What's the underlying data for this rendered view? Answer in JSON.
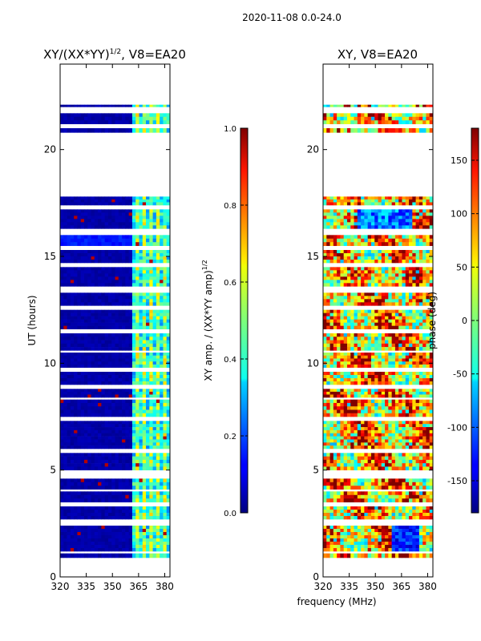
{
  "suptitle": "2020-11-08 0.0-24.0",
  "chart_data": [
    {
      "type": "heatmap",
      "title_main": "XY/(XX*YY)",
      "title_exp": "1/2",
      "title_tail": ", V8=EA20",
      "ylabel": "UT (hours)",
      "xlim": [
        320,
        383
      ],
      "ylim": [
        0,
        24
      ],
      "xticks": [
        "320",
        "335",
        "350",
        "365",
        "380"
      ],
      "yticks": [
        "0",
        "5",
        "10",
        "15",
        "20"
      ],
      "colorbar": {
        "label_main": "XY amp. / (XX*YY amp)",
        "label_exp": "1/2",
        "range": [
          0.0,
          1.0
        ],
        "ticks": [
          "0.0",
          "0.2",
          "0.4",
          "0.6",
          "0.8",
          "1.0"
        ]
      },
      "data_blocks_ut": [
        [
          0.9,
          1.1
        ],
        [
          1.2,
          2.4
        ],
        [
          2.7,
          3.3
        ],
        [
          3.5,
          4.0
        ],
        [
          4.1,
          4.6
        ],
        [
          5.0,
          5.8
        ],
        [
          6.0,
          7.3
        ],
        [
          7.5,
          8.3
        ],
        [
          8.4,
          8.8
        ],
        [
          9.0,
          9.6
        ],
        [
          9.8,
          10.5
        ],
        [
          10.6,
          11.4
        ],
        [
          11.6,
          12.5
        ],
        [
          12.7,
          13.3
        ],
        [
          13.6,
          14.5
        ],
        [
          14.7,
          15.3
        ],
        [
          15.5,
          16.0
        ],
        [
          16.3,
          17.2
        ],
        [
          17.4,
          17.8
        ],
        [
          20.8,
          21.0
        ],
        [
          21.2,
          21.7
        ],
        [
          22.0,
          22.1
        ]
      ],
      "hot_channels_mhz": [
        [
          363,
          365
        ],
        [
          368,
          370
        ],
        [
          371,
          373
        ],
        [
          375,
          377
        ],
        [
          379,
          381
        ]
      ]
    },
    {
      "type": "heatmap",
      "title": "XY, V8=EA20",
      "xlabel": "frequency (MHz)",
      "xlim": [
        320,
        383
      ],
      "ylim": [
        0,
        24
      ],
      "xticks": [
        "320",
        "335",
        "350",
        "365",
        "380"
      ],
      "yticks": [
        "0",
        "5",
        "10",
        "15",
        "20"
      ],
      "colorbar": {
        "label": "phase (deg)",
        "range": [
          -180,
          180
        ],
        "ticks": [
          "-150",
          "-100",
          "-50",
          "0",
          "50",
          "100",
          "150"
        ]
      },
      "data_blocks_ut": [
        [
          0.9,
          1.1
        ],
        [
          1.2,
          2.4
        ],
        [
          2.7,
          3.3
        ],
        [
          3.5,
          4.0
        ],
        [
          4.1,
          4.6
        ],
        [
          5.0,
          5.8
        ],
        [
          6.0,
          7.3
        ],
        [
          7.5,
          8.3
        ],
        [
          8.4,
          8.8
        ],
        [
          9.0,
          9.6
        ],
        [
          9.8,
          10.5
        ],
        [
          10.6,
          11.4
        ],
        [
          11.6,
          12.5
        ],
        [
          12.7,
          13.3
        ],
        [
          13.6,
          14.5
        ],
        [
          14.7,
          15.3
        ],
        [
          15.5,
          16.0
        ],
        [
          16.3,
          17.2
        ],
        [
          17.4,
          17.8
        ],
        [
          20.8,
          21.0
        ],
        [
          21.2,
          21.7
        ],
        [
          22.0,
          22.1
        ]
      ]
    }
  ]
}
